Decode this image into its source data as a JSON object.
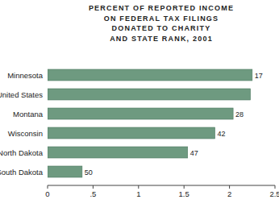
{
  "chart_data": {
    "type": "bar",
    "orientation": "horizontal",
    "title": "PERCENT OF REPORTED INCOME\nON FEDERAL TAX FILINGS\nDONATED TO CHARITY\nAND STATE RANK, 2001",
    "categories": [
      "Minnesota",
      "United States",
      "Montana",
      "Wisconsin",
      "North Dakota",
      "South Dakota"
    ],
    "values": [
      2.25,
      2.23,
      2.04,
      1.84,
      1.54,
      0.38
    ],
    "ranks": [
      17,
      null,
      28,
      42,
      47,
      50
    ],
    "color": "#6e9a80",
    "xlim": [
      0,
      2.5
    ],
    "xticks": [
      0,
      {
        "value": 0.5,
        "label": ".5"
      },
      1,
      1.5,
      2,
      2.5
    ],
    "grid": false
  }
}
